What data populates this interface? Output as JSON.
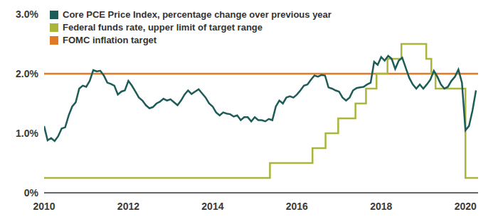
{
  "chart_data": {
    "type": "line",
    "legend": "upper left",
    "grid": false,
    "xlim": [
      2010,
      2020.3
    ],
    "xticks": [
      2010,
      2012,
      2014,
      2016,
      2018,
      2020
    ],
    "ylim": [
      0,
      3
    ],
    "yticks": [
      {
        "value": 0,
        "label": "0%"
      },
      {
        "value": 1,
        "label": "1.0%"
      },
      {
        "value": 2,
        "label": "2.0%"
      },
      {
        "value": 3,
        "label": "3.0%"
      }
    ],
    "series": [
      {
        "name": "FOMC inflation target",
        "color": "#e07a26",
        "line_style": "solid",
        "x": [
          2010,
          2020.3
        ],
        "values": [
          2,
          2
        ]
      },
      {
        "name": "Federal funds rate, upper limit of target range",
        "color": "#a9b53b",
        "line_style": "step",
        "x": [
          2010,
          2015.36,
          2016.37,
          2016.68,
          2016.98,
          2017.39,
          2017.64,
          2017.89,
          2018.15,
          2018.48,
          2019.07,
          2019.19,
          2019.29,
          2020.0,
          2020.3
        ],
        "values": [
          0.25,
          0.5,
          0.75,
          1.0,
          1.25,
          1.5,
          1.75,
          2.0,
          2.25,
          2.5,
          2.25,
          2.0,
          1.75,
          0.25,
          0.25
        ]
      },
      {
        "name": "Core PCE Price Index, percentage change over previous year",
        "color": "#1d5c57",
        "line_style": "solid",
        "x": [
          2010,
          2010.083,
          2010.167,
          2010.25,
          2010.333,
          2010.417,
          2010.5,
          2010.583,
          2010.667,
          2010.75,
          2010.833,
          2010.917,
          2011,
          2011.083,
          2011.167,
          2011.25,
          2011.333,
          2011.417,
          2011.5,
          2011.583,
          2011.667,
          2011.75,
          2011.833,
          2011.917,
          2012,
          2012.083,
          2012.167,
          2012.25,
          2012.333,
          2012.417,
          2012.5,
          2012.583,
          2012.667,
          2012.75,
          2012.833,
          2012.917,
          2013,
          2013.083,
          2013.167,
          2013.25,
          2013.333,
          2013.417,
          2013.5,
          2013.583,
          2013.667,
          2013.75,
          2013.833,
          2013.917,
          2014,
          2014.083,
          2014.167,
          2014.25,
          2014.333,
          2014.417,
          2014.5,
          2014.583,
          2014.667,
          2014.75,
          2014.833,
          2014.917,
          2015,
          2015.083,
          2015.167,
          2015.25,
          2015.333,
          2015.417,
          2015.5,
          2015.583,
          2015.667,
          2015.75,
          2015.833,
          2015.917,
          2016,
          2016.083,
          2016.167,
          2016.25,
          2016.333,
          2016.417,
          2016.5,
          2016.583,
          2016.667,
          2016.75,
          2016.833,
          2016.917,
          2017,
          2017.083,
          2017.167,
          2017.25,
          2017.333,
          2017.417,
          2017.5,
          2017.583,
          2017.667,
          2017.75,
          2017.833,
          2017.917,
          2018,
          2018.083,
          2018.167,
          2018.25,
          2018.333,
          2018.417,
          2018.5,
          2018.583,
          2018.667,
          2018.75,
          2018.833,
          2018.917,
          2019,
          2019.083,
          2019.167,
          2019.25,
          2019.333,
          2019.417,
          2019.5,
          2019.583,
          2019.667,
          2019.75,
          2019.833,
          2019.917,
          2020,
          2020.083,
          2020.167,
          2020.25
        ],
        "values": [
          1.12,
          0.88,
          0.92,
          0.87,
          0.95,
          1.08,
          1.1,
          1.3,
          1.45,
          1.52,
          1.75,
          1.8,
          1.78,
          1.88,
          2.06,
          2.04,
          2.05,
          1.97,
          1.85,
          1.83,
          1.8,
          1.65,
          1.7,
          1.72,
          1.88,
          1.8,
          1.7,
          1.6,
          1.55,
          1.47,
          1.42,
          1.44,
          1.5,
          1.53,
          1.58,
          1.55,
          1.57,
          1.52,
          1.47,
          1.55,
          1.65,
          1.72,
          1.66,
          1.7,
          1.74,
          1.67,
          1.6,
          1.5,
          1.45,
          1.35,
          1.3,
          1.35,
          1.33,
          1.32,
          1.28,
          1.3,
          1.22,
          1.27,
          1.27,
          1.2,
          1.27,
          1.22,
          1.22,
          1.2,
          1.24,
          1.22,
          1.45,
          1.55,
          1.5,
          1.6,
          1.62,
          1.6,
          1.65,
          1.72,
          1.8,
          1.82,
          1.9,
          1.97,
          1.95,
          1.98,
          1.97,
          1.77,
          1.75,
          1.72,
          1.7,
          1.6,
          1.55,
          1.6,
          1.72,
          1.76,
          1.77,
          1.78,
          1.82,
          1.85,
          2.2,
          2.15,
          2.28,
          2.22,
          2.3,
          2.25,
          2.08,
          2.22,
          2.27,
          2.1,
          1.93,
          1.82,
          1.75,
          1.82,
          1.75,
          1.82,
          1.9,
          2.05,
          1.95,
          1.82,
          1.75,
          1.78,
          1.88,
          1.95,
          2.07,
          1.85,
          1.05,
          1.12,
          1.38,
          1.72
        ]
      }
    ]
  }
}
